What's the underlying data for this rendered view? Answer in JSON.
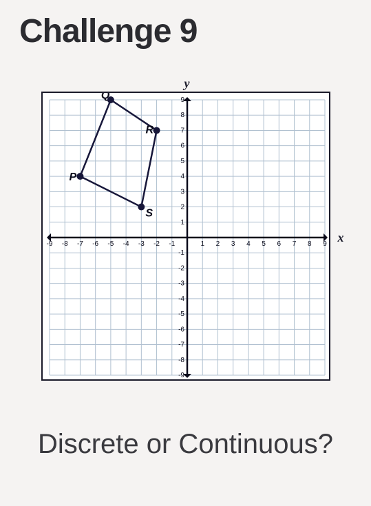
{
  "title": "Challenge 9",
  "question": "Discrete or Continuous?",
  "graph": {
    "type": "coordinate-grid",
    "xlim": [
      -9,
      9
    ],
    "ylim": [
      -9,
      9
    ],
    "x_ticks": [
      -9,
      -8,
      -7,
      -6,
      -5,
      -4,
      -3,
      -2,
      -1,
      1,
      2,
      3,
      4,
      5,
      6,
      7,
      8,
      9
    ],
    "y_ticks": [
      -9,
      -8,
      -7,
      -6,
      -5,
      -4,
      -3,
      -2,
      -1,
      1,
      2,
      3,
      4,
      5,
      6,
      7,
      8,
      9
    ],
    "x_label": "x",
    "y_label": "y",
    "grid_color": "#b0c0d0",
    "axis_color": "#0a0a1a",
    "background_color": "#ffffff",
    "tick_fontsize": 10,
    "label_fontsize": 16,
    "point_color": "#17173a",
    "line_color": "#17173a",
    "line_width": 2.5,
    "point_radius": 5,
    "points": {
      "Q": {
        "x": -5,
        "y": 9,
        "label_dx": -14,
        "label_dy": -2
      },
      "R": {
        "x": -2,
        "y": 7,
        "label_dx": -16,
        "label_dy": 4
      },
      "S": {
        "x": -3,
        "y": 2,
        "label_dx": 6,
        "label_dy": 14
      },
      "P": {
        "x": -7,
        "y": 4,
        "label_dx": -16,
        "label_dy": 6
      }
    },
    "polygon_order": [
      "Q",
      "R",
      "S",
      "P"
    ]
  }
}
